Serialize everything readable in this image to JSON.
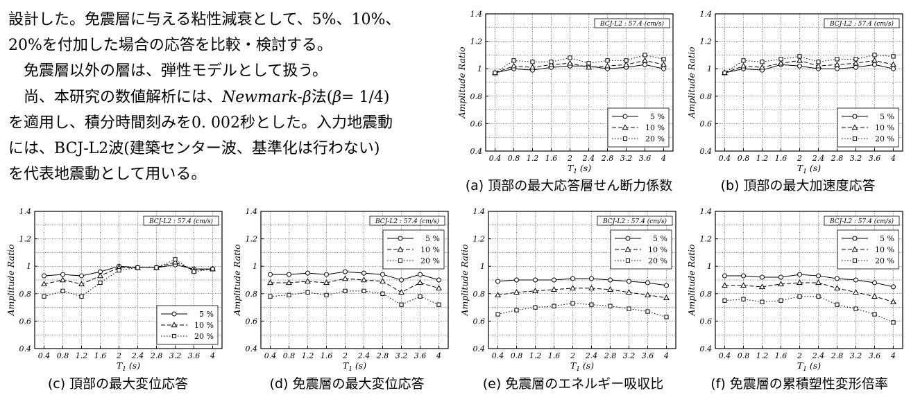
{
  "text": {
    "lines": [
      "設計した。免震層に与える粘性減衰として、5%、10%、",
      "20%を付加した場合の応答を比較・検討する。",
      "免震層以外の層は、弾性モデルとして扱う。",
      "を適用し、積分時間刻みを0. 002秒とした。入力地震動",
      "には、BCJ-L2波(建築センター波、基準化は行わない)",
      "を代表地震動として用いる。"
    ],
    "line4": {
      "pre": "尚、本研究の数値解析には、",
      "method": "Newmark-β",
      "mid": "法(",
      "beta": "β",
      "post": "= 1/4)"
    }
  },
  "chart_data": [
    {
      "type": "line",
      "caption": "(a) 頂部の最大応答層せん断力係数",
      "note": "BCJ-L2 : 57.4 (cm/s)",
      "xlabel": "T1 (s)",
      "ylabel": "Amplitude Ratio",
      "x": [
        0.4,
        0.8,
        1.2,
        1.6,
        2,
        2.4,
        2.8,
        3.2,
        3.6,
        4
      ],
      "xticks": [
        "0.4",
        "0.8",
        "1.2",
        "1.6",
        "2",
        "2.4",
        "2.8",
        "3.2",
        "3.6",
        "4"
      ],
      "yticks": [
        "0.4",
        "0.6",
        "0.8",
        "1",
        "1.2",
        "1.4"
      ],
      "ylim": [
        0.4,
        1.4
      ],
      "legend": "bottom-right",
      "series": [
        {
          "name": "5 %",
          "marker": "circle",
          "dash": "solid",
          "values": [
            0.97,
            1.0,
            0.99,
            1.01,
            1.02,
            1.02,
            1.0,
            1.01,
            1.03,
            1.0
          ]
        },
        {
          "name": "10 %",
          "marker": "triangle",
          "dash": "dashed",
          "values": [
            0.97,
            1.02,
            1.01,
            1.03,
            1.04,
            1.01,
            1.02,
            1.03,
            1.06,
            1.03
          ]
        },
        {
          "name": "20 %",
          "marker": "square",
          "dash": "dotted",
          "values": [
            0.97,
            1.06,
            1.05,
            1.05,
            1.08,
            1.04,
            1.06,
            1.06,
            1.1,
            1.07
          ]
        }
      ]
    },
    {
      "type": "line",
      "caption": "(b) 頂部の最大加速度応答",
      "note": "BCJ-L2 : 57.4 (cm/s)",
      "xlabel": "T1 (s)",
      "ylabel": "Amplitude Ratio",
      "x": [
        0.4,
        0.8,
        1.2,
        1.6,
        2,
        2.4,
        2.8,
        3.2,
        3.6,
        4
      ],
      "xticks": [
        "0.4",
        "0.8",
        "1.2",
        "1.6",
        "2",
        "2.4",
        "2.8",
        "3.2",
        "3.6",
        "4"
      ],
      "yticks": [
        "0.4",
        "0.6",
        "0.8",
        "1",
        "1.2",
        "1.4"
      ],
      "ylim": [
        0.4,
        1.4
      ],
      "legend": "bottom-right",
      "series": [
        {
          "name": "5 %",
          "marker": "circle",
          "dash": "solid",
          "values": [
            0.97,
            1.0,
            0.99,
            1.03,
            1.02,
            1.0,
            1.0,
            1.01,
            1.03,
            1.0
          ]
        },
        {
          "name": "10 %",
          "marker": "triangle",
          "dash": "dashed",
          "values": [
            0.97,
            1.02,
            1.01,
            1.04,
            1.06,
            1.02,
            1.03,
            1.04,
            1.06,
            1.03
          ]
        },
        {
          "name": "20 %",
          "marker": "square",
          "dash": "dotted",
          "values": [
            0.97,
            1.06,
            1.05,
            1.07,
            1.09,
            1.05,
            1.07,
            1.07,
            1.1,
            1.09
          ]
        }
      ]
    },
    {
      "type": "line",
      "caption": "(c) 頂部の最大変位応答",
      "note": "BCJ-L2 : 57.4 (cm/s)",
      "xlabel": "T1 (s)",
      "ylabel": "Amplitude Ratio",
      "x": [
        0.4,
        0.8,
        1.2,
        1.6,
        2,
        2.4,
        2.8,
        3.2,
        3.6,
        4
      ],
      "xticks": [
        "0.4",
        "0.8",
        "1.2",
        "1.6",
        "2",
        "2.4",
        "2.8",
        "3.2",
        "3.6",
        "4"
      ],
      "yticks": [
        "0.4",
        "0.6",
        "0.8",
        "1",
        "1.2",
        "1.4"
      ],
      "ylim": [
        0.4,
        1.4
      ],
      "legend": "bottom-right",
      "series": [
        {
          "name": "5 %",
          "marker": "circle",
          "dash": "solid",
          "values": [
            0.93,
            0.94,
            0.93,
            0.96,
            1.0,
            0.99,
            0.99,
            1.01,
            0.98,
            0.98
          ]
        },
        {
          "name": "10 %",
          "marker": "triangle",
          "dash": "dashed",
          "values": [
            0.87,
            0.9,
            0.87,
            0.93,
            0.99,
            0.99,
            0.99,
            1.03,
            0.97,
            0.98
          ]
        },
        {
          "name": "20 %",
          "marker": "square",
          "dash": "dotted",
          "values": [
            0.78,
            0.82,
            0.78,
            0.88,
            0.97,
            0.99,
            0.99,
            1.05,
            0.96,
            0.98
          ]
        }
      ]
    },
    {
      "type": "line",
      "caption": "(d) 免震層の最大変位応答",
      "note": "BCJ-L2 : 57.4 (cm/s)",
      "xlabel": "T1 (s)",
      "ylabel": "Amplitude Ratio",
      "x": [
        0.4,
        0.8,
        1.2,
        1.6,
        2,
        2.4,
        2.8,
        3.2,
        3.6,
        4
      ],
      "xticks": [
        "0.4",
        "0.8",
        "1.2",
        "1.6",
        "2",
        "2.4",
        "2.8",
        "3.2",
        "3.6",
        "4"
      ],
      "yticks": [
        "0.4",
        "0.6",
        "0.8",
        "1",
        "1.2",
        "1.4"
      ],
      "ylim": [
        0.4,
        1.4
      ],
      "legend": "top-right",
      "series": [
        {
          "name": "5 %",
          "marker": "circle",
          "dash": "solid",
          "values": [
            0.94,
            0.94,
            0.95,
            0.94,
            0.96,
            0.95,
            0.94,
            0.9,
            0.94,
            0.9
          ]
        },
        {
          "name": "10 %",
          "marker": "triangle",
          "dash": "dashed",
          "values": [
            0.88,
            0.88,
            0.89,
            0.88,
            0.91,
            0.9,
            0.89,
            0.81,
            0.88,
            0.84
          ]
        },
        {
          "name": "20 %",
          "marker": "square",
          "dash": "dotted",
          "values": [
            0.78,
            0.79,
            0.81,
            0.79,
            0.82,
            0.82,
            0.8,
            0.72,
            0.78,
            0.72
          ]
        }
      ]
    },
    {
      "type": "line",
      "caption": "(e) 免震層のエネルギー吸収比",
      "note": "BCJ-L2 : 57.4 (cm/s)",
      "xlabel": "T1 (s)",
      "ylabel": "Amplitude Ratio",
      "x": [
        0.4,
        0.8,
        1.2,
        1.6,
        2,
        2.4,
        2.8,
        3.2,
        3.6,
        4
      ],
      "xticks": [
        "0.4",
        "0.8",
        "1.2",
        "1.6",
        "2",
        "2.4",
        "2.8",
        "3.2",
        "3.6",
        "4"
      ],
      "yticks": [
        "0.4",
        "0.6",
        "0.8",
        "1",
        "1.2",
        "1.4"
      ],
      "ylim": [
        0.4,
        1.4
      ],
      "legend": "top-right",
      "series": [
        {
          "name": "5 %",
          "marker": "circle",
          "dash": "solid",
          "values": [
            0.89,
            0.9,
            0.9,
            0.9,
            0.91,
            0.91,
            0.9,
            0.89,
            0.88,
            0.86
          ]
        },
        {
          "name": "10 %",
          "marker": "triangle",
          "dash": "dashed",
          "values": [
            0.79,
            0.81,
            0.82,
            0.83,
            0.84,
            0.84,
            0.83,
            0.81,
            0.79,
            0.77
          ]
        },
        {
          "name": "20 %",
          "marker": "square",
          "dash": "dotted",
          "values": [
            0.65,
            0.68,
            0.7,
            0.71,
            0.73,
            0.72,
            0.71,
            0.69,
            0.67,
            0.63
          ]
        }
      ]
    },
    {
      "type": "line",
      "caption": "(f) 免震層の累積塑性変形倍率",
      "note": "BCJ-L2 : 57.4 (cm/s)",
      "xlabel": "T1 (s)",
      "ylabel": "Amplitude Ratio",
      "x": [
        0.4,
        0.8,
        1.2,
        1.6,
        2,
        2.4,
        2.8,
        3.2,
        3.6,
        4
      ],
      "xticks": [
        "0.4",
        "0.8",
        "1.2",
        "1.6",
        "2",
        "2.4",
        "2.8",
        "3.2",
        "3.6",
        "4"
      ],
      "yticks": [
        "0.4",
        "0.6",
        "0.8",
        "1",
        "1.2",
        "1.4"
      ],
      "ylim": [
        0.4,
        1.4
      ],
      "legend": "top-right",
      "series": [
        {
          "name": "5 %",
          "marker": "circle",
          "dash": "solid",
          "values": [
            0.93,
            0.93,
            0.92,
            0.92,
            0.94,
            0.93,
            0.91,
            0.9,
            0.88,
            0.85
          ]
        },
        {
          "name": "10 %",
          "marker": "triangle",
          "dash": "dashed",
          "values": [
            0.86,
            0.86,
            0.85,
            0.87,
            0.88,
            0.88,
            0.84,
            0.81,
            0.78,
            0.74
          ]
        },
        {
          "name": "20 %",
          "marker": "square",
          "dash": "dotted",
          "values": [
            0.75,
            0.76,
            0.74,
            0.75,
            0.78,
            0.78,
            0.72,
            0.69,
            0.65,
            0.59
          ]
        }
      ]
    }
  ]
}
